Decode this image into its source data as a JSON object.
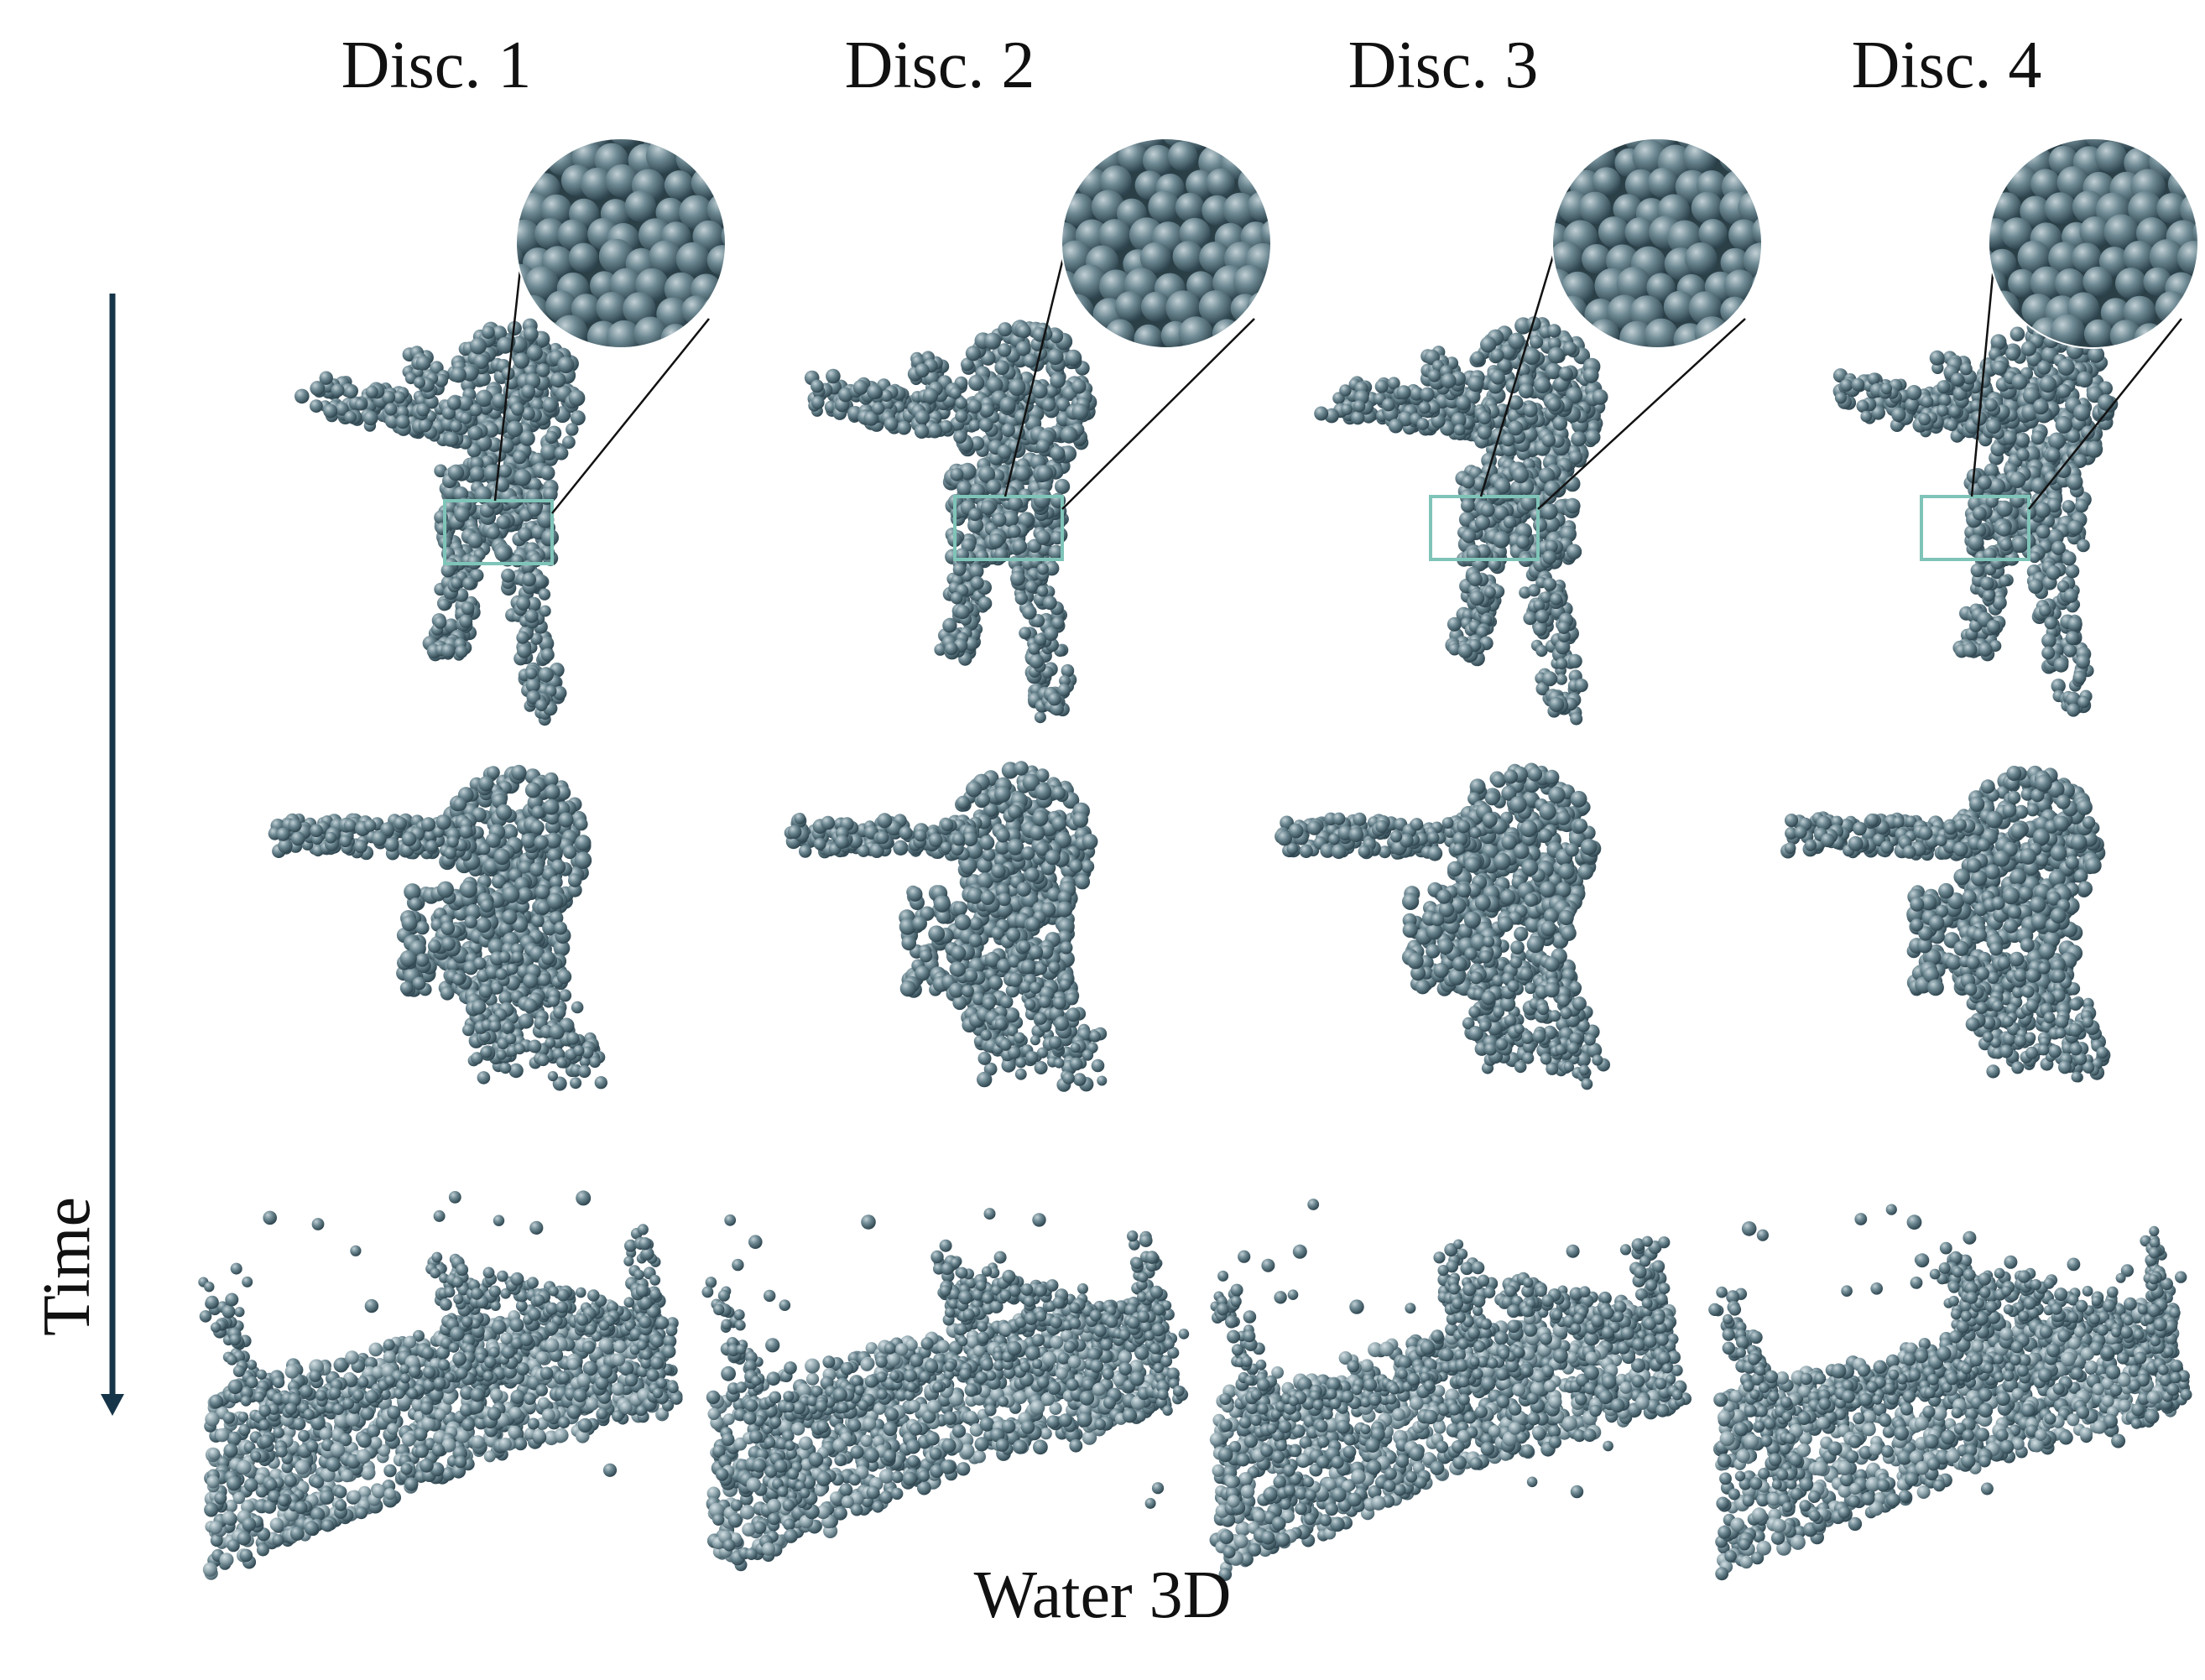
{
  "columns": [
    "Disc. 1",
    "Disc. 2",
    "Disc. 3",
    "Disc. 4"
  ],
  "time_label": "Time",
  "bottom_title": "Water 3D",
  "colors": {
    "particle": "#4f6a74",
    "particle_light": "#7d959e",
    "particle_highlight": "#b3c3c9",
    "arrow": "#173548",
    "zoom_box": "#7fc4b8",
    "zoom_line": "#111111"
  },
  "rows": [
    "figure-frame-1",
    "figure-frame-2",
    "figure-frame-3"
  ]
}
